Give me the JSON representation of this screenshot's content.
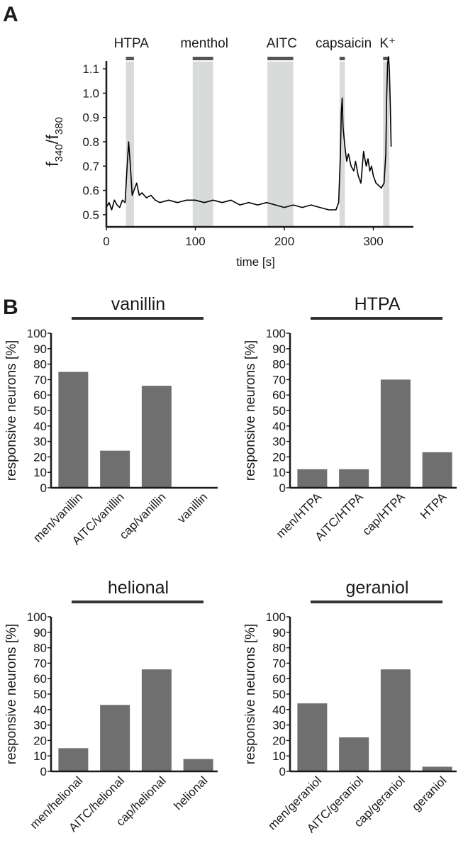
{
  "panel_a": {
    "letter": "A",
    "stimuli": [
      "HTPA",
      "menthol",
      "AITC",
      "capsaicin",
      "K⁺"
    ],
    "ylabel": "f340/f380"
  },
  "panel_b": {
    "letter": "B"
  },
  "chart_data": [
    {
      "type": "line",
      "xlabel": "time [s]",
      "ylabel": "f340/f380",
      "xlim": [
        0,
        345
      ],
      "ylim": [
        0.45,
        1.15
      ],
      "xticks": [
        0,
        100,
        200,
        300
      ],
      "yticks": [
        0.5,
        0.6,
        0.7,
        0.8,
        0.9,
        1.0,
        1.1
      ],
      "ytick_labels": [
        "0.5",
        "0.6",
        "0.7",
        "0.8",
        "0.9",
        "1.0",
        "1.1"
      ],
      "stimulus_windows": [
        {
          "label": "HTPA",
          "start": 22,
          "end": 31
        },
        {
          "label": "menthol",
          "start": 97,
          "end": 120
        },
        {
          "label": "AITC",
          "start": 181,
          "end": 210
        },
        {
          "label": "capsaicin",
          "start": 262,
          "end": 268
        },
        {
          "label": "K⁺",
          "start": 311,
          "end": 318
        }
      ],
      "series": [
        {
          "x": [
            0,
            3,
            6,
            9,
            12,
            15,
            18,
            21,
            23,
            25,
            27,
            29,
            31,
            34,
            37,
            40,
            45,
            50,
            55,
            60,
            70,
            80,
            90,
            100,
            110,
            120,
            130,
            140,
            150,
            160,
            170,
            180,
            190,
            200,
            210,
            220,
            230,
            240,
            250,
            258,
            261,
            263,
            264,
            265,
            266,
            268,
            270,
            272,
            275,
            278,
            280,
            283,
            286,
            289,
            292,
            294,
            296,
            298,
            300,
            303,
            306,
            309,
            312,
            314,
            315,
            316,
            317,
            318,
            319,
            320
          ],
          "y": [
            0.53,
            0.55,
            0.52,
            0.56,
            0.54,
            0.53,
            0.56,
            0.55,
            0.68,
            0.8,
            0.7,
            0.58,
            0.6,
            0.63,
            0.58,
            0.59,
            0.57,
            0.58,
            0.56,
            0.55,
            0.56,
            0.55,
            0.56,
            0.56,
            0.55,
            0.56,
            0.55,
            0.56,
            0.54,
            0.55,
            0.54,
            0.55,
            0.54,
            0.53,
            0.54,
            0.53,
            0.54,
            0.53,
            0.52,
            0.52,
            0.55,
            0.75,
            0.92,
            0.98,
            0.86,
            0.78,
            0.72,
            0.75,
            0.7,
            0.68,
            0.72,
            0.66,
            0.63,
            0.76,
            0.7,
            0.73,
            0.68,
            0.7,
            0.66,
            0.63,
            0.62,
            0.61,
            0.63,
            0.75,
            0.98,
            1.12,
            1.15,
            1.1,
            0.95,
            0.78
          ]
        }
      ]
    },
    {
      "type": "bar",
      "title": "vanillin",
      "ylabel": "responsive neurons [%]",
      "ylim": [
        0,
        100
      ],
      "yticks": [
        0,
        10,
        20,
        30,
        40,
        50,
        60,
        70,
        80,
        90,
        100
      ],
      "categories": [
        "men/vanillin",
        "AITC/vanillin",
        "cap/vanillin",
        "vanillin"
      ],
      "values": [
        75,
        24,
        66,
        0
      ],
      "color": "#6f6f6f"
    },
    {
      "type": "bar",
      "title": "HTPA",
      "ylabel": "responsive neurons [%]",
      "ylim": [
        0,
        100
      ],
      "yticks": [
        0,
        10,
        20,
        30,
        40,
        50,
        60,
        70,
        80,
        90,
        100
      ],
      "categories": [
        "men/HTPA",
        "AITC/HTPA",
        "cap/HTPA",
        "HTPA"
      ],
      "values": [
        12,
        12,
        70,
        23
      ],
      "color": "#6f6f6f"
    },
    {
      "type": "bar",
      "title": "helional",
      "ylabel": "responsive neurons [%]",
      "ylim": [
        0,
        100
      ],
      "yticks": [
        0,
        10,
        20,
        30,
        40,
        50,
        60,
        70,
        80,
        90,
        100
      ],
      "categories": [
        "men/helional",
        "AITC/helional",
        "cap/helional",
        "helional"
      ],
      "values": [
        15,
        43,
        66,
        8
      ],
      "color": "#6f6f6f"
    },
    {
      "type": "bar",
      "title": "geraniol",
      "ylabel": "responsive neurons [%]",
      "ylim": [
        0,
        100
      ],
      "yticks": [
        0,
        10,
        20,
        30,
        40,
        50,
        60,
        70,
        80,
        90,
        100
      ],
      "categories": [
        "men/geraniol",
        "AITC/geraniol",
        "cap/geraniol",
        "geraniol"
      ],
      "values": [
        44,
        22,
        66,
        3
      ],
      "color": "#6f6f6f"
    }
  ]
}
